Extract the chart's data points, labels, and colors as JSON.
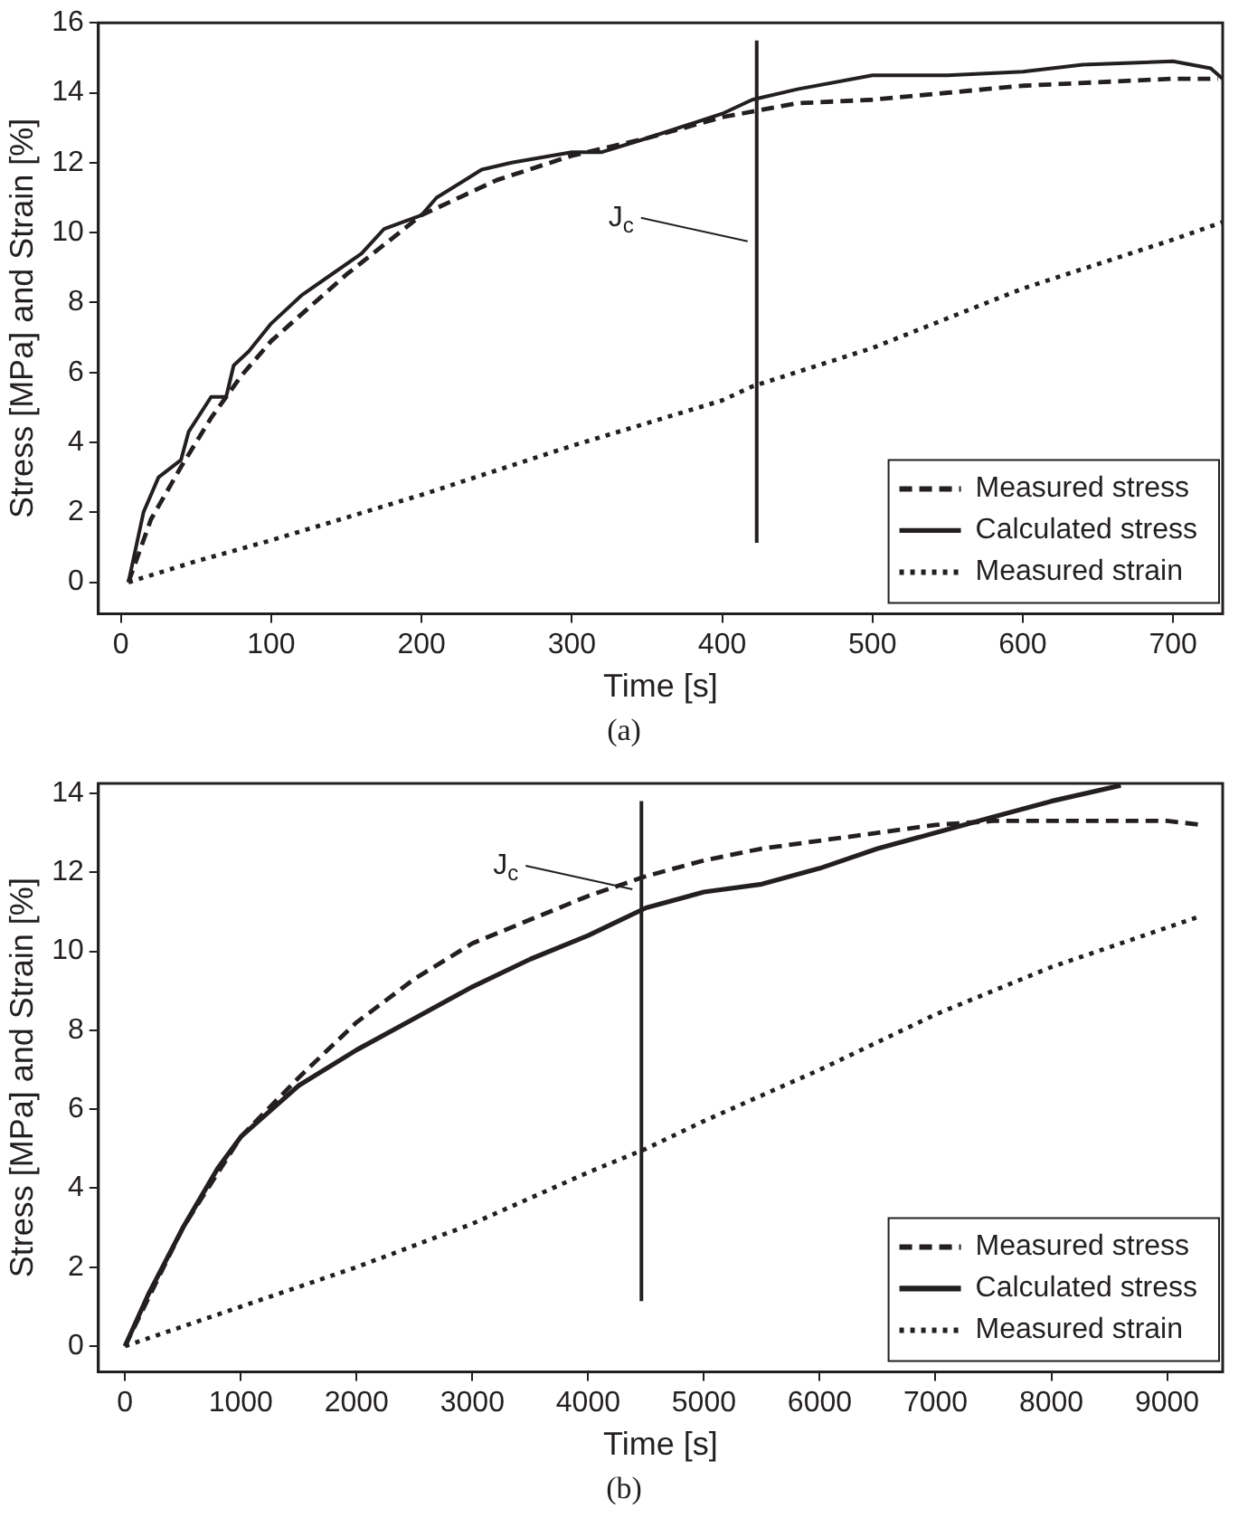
{
  "chart_data": [
    {
      "type": "line",
      "xlabel": "Time [s]",
      "ylabel": "Stress [MPa] and Strain [%]",
      "xlim": [
        -15,
        733
      ],
      "ylim": [
        -0.9,
        16
      ],
      "xticks": [
        0,
        100,
        200,
        300,
        400,
        500,
        600,
        700
      ],
      "yticks": [
        0,
        2,
        4,
        6,
        8,
        10,
        12,
        14,
        16
      ],
      "grid": false,
      "legend": "bottom right",
      "marker": "none",
      "annotations": [
        "(a)"
      ],
      "ref_lines": [
        {
          "axis": "x",
          "value": 423,
          "label": "J$_{c}$",
          "color": "#231f20"
        }
      ],
      "series": [
        {
          "name": "Measured stress",
          "color": "#231f20",
          "line_style": "dashed",
          "x": [
            5,
            20,
            40,
            60,
            80,
            100,
            150,
            200,
            250,
            300,
            350,
            400,
            450,
            500,
            550,
            600,
            650,
            700,
            730
          ],
          "values": [
            0,
            1.8,
            3.3,
            4.7,
            5.9,
            6.9,
            8.8,
            10.5,
            11.5,
            12.2,
            12.7,
            13.3,
            13.7,
            13.8,
            14.0,
            14.2,
            14.3,
            14.4,
            14.4
          ]
        },
        {
          "name": "Calculated stress",
          "color": "#231f20",
          "line_style": "solid",
          "x": [
            5,
            15,
            25,
            40,
            45,
            60,
            70,
            75,
            85,
            100,
            120,
            140,
            160,
            175,
            200,
            210,
            240,
            260,
            300,
            320,
            350,
            400,
            420,
            450,
            500,
            550,
            600,
            640,
            700,
            725,
            733
          ],
          "values": [
            0,
            2,
            3,
            3.5,
            4.3,
            5.3,
            5.3,
            6.2,
            6.6,
            7.4,
            8.2,
            8.8,
            9.4,
            10.1,
            10.5,
            11,
            11.8,
            12,
            12.3,
            12.3,
            12.7,
            13.4,
            13.8,
            14.1,
            14.5,
            14.5,
            14.6,
            14.8,
            14.9,
            14.7,
            14.4
          ]
        },
        {
          "name": "Measured strain",
          "color": "#231f20",
          "line_style": "dotted",
          "x": [
            5,
            50,
            100,
            200,
            300,
            400,
            420,
            500,
            600,
            700,
            733
          ],
          "values": [
            0,
            0.6,
            1.2,
            2.5,
            3.9,
            5.2,
            5.6,
            6.7,
            8.4,
            9.8,
            10.3
          ]
        }
      ]
    },
    {
      "type": "line",
      "xlabel": "Time [s]",
      "ylabel": "Stress [MPa] and Strain [%]",
      "xlim": [
        -230,
        9480
      ],
      "ylim": [
        -0.65,
        14.25
      ],
      "xticks": [
        0,
        1000,
        2000,
        3000,
        4000,
        5000,
        6000,
        7000,
        8000,
        9000
      ],
      "yticks": [
        0,
        2,
        4,
        6,
        8,
        10,
        12,
        14
      ],
      "grid": false,
      "legend": "bottom right",
      "marker": "none",
      "annotations": [
        "(b)"
      ],
      "ref_lines": [
        {
          "axis": "x",
          "value": 4460,
          "label": "J$_{c}$",
          "color": "#231f20"
        }
      ],
      "series": [
        {
          "name": "Measured stress",
          "color": "#231f20",
          "line_style": "dashed",
          "x": [
            0,
            500,
            1000,
            1500,
            2000,
            2500,
            3000,
            3500,
            4000,
            4500,
            5000,
            5500,
            6000,
            6500,
            7000,
            7500,
            8000,
            8500,
            9000,
            9300
          ],
          "values": [
            0,
            3,
            5.3,
            6.8,
            8.2,
            9.3,
            10.2,
            10.8,
            11.4,
            11.9,
            12.3,
            12.6,
            12.8,
            13.0,
            13.2,
            13.3,
            13.3,
            13.3,
            13.3,
            13.2
          ]
        },
        {
          "name": "Calculated stress",
          "color": "#231f20",
          "line_style": "solid",
          "x": [
            0,
            200,
            500,
            800,
            1000,
            1500,
            2000,
            2500,
            3000,
            3500,
            4000,
            4500,
            5000,
            5500,
            6000,
            6500,
            7000,
            7500,
            8000,
            8600
          ],
          "values": [
            0,
            1.3,
            3,
            4.5,
            5.3,
            6.6,
            7.5,
            8.3,
            9.1,
            9.8,
            10.4,
            11.1,
            11.5,
            11.7,
            12.1,
            12.6,
            13.0,
            13.4,
            13.8,
            14.2
          ]
        },
        {
          "name": "Measured strain",
          "color": "#231f20",
          "line_style": "dotted",
          "x": [
            0,
            1000,
            2000,
            3000,
            4000,
            4500,
            5000,
            6000,
            7000,
            8000,
            9300
          ],
          "values": [
            0,
            1.0,
            2.0,
            3.1,
            4.4,
            5.0,
            5.7,
            7.0,
            8.4,
            9.6,
            10.9
          ]
        }
      ]
    }
  ]
}
